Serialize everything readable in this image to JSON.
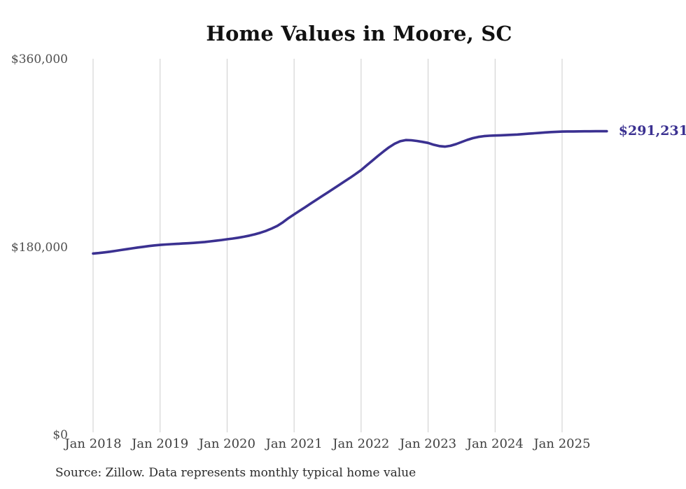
{
  "chart_data": {
    "type": "line",
    "title": "Home Values in Moore, SC",
    "xlabel": "",
    "ylabel": "",
    "ylim": [
      0,
      360000
    ],
    "grid": "vertical-lines-at-each-january",
    "legend": "none",
    "end_label": "$291,231",
    "latest_value": 291231,
    "line_color": "#3b3191",
    "grid_color": "#cccccc",
    "y_ticks": [
      {
        "label": "$0",
        "value": 0
      },
      {
        "label": "$180,000",
        "value": 180000
      },
      {
        "label": "$360,000",
        "value": 360000
      }
    ],
    "x_ticks": [
      {
        "label": "Jan 2018",
        "month": "2018-01"
      },
      {
        "label": "Jan 2019",
        "month": "2019-01"
      },
      {
        "label": "Jan 2020",
        "month": "2020-01"
      },
      {
        "label": "Jan 2021",
        "month": "2021-01"
      },
      {
        "label": "Jan 2022",
        "month": "2022-01"
      },
      {
        "label": "Jan 2023",
        "month": "2023-01"
      },
      {
        "label": "Jan 2024",
        "month": "2024-01"
      },
      {
        "label": "Jan 2025",
        "month": "2025-01"
      }
    ],
    "series": [
      {
        "name": "Monthly typical home value",
        "frequency": "monthly",
        "x": [
          "2018-01",
          "2018-02",
          "2018-03",
          "2018-04",
          "2018-05",
          "2018-06",
          "2018-07",
          "2018-08",
          "2018-09",
          "2018-10",
          "2018-11",
          "2018-12",
          "2019-01",
          "2019-02",
          "2019-03",
          "2019-04",
          "2019-05",
          "2019-06",
          "2019-07",
          "2019-08",
          "2019-09",
          "2019-10",
          "2019-11",
          "2019-12",
          "2020-01",
          "2020-02",
          "2020-03",
          "2020-04",
          "2020-05",
          "2020-06",
          "2020-07",
          "2020-08",
          "2020-09",
          "2020-10",
          "2020-11",
          "2020-12",
          "2021-01",
          "2021-02",
          "2021-03",
          "2021-04",
          "2021-05",
          "2021-06",
          "2021-07",
          "2021-08",
          "2021-09",
          "2021-10",
          "2021-11",
          "2021-12",
          "2022-01",
          "2022-02",
          "2022-03",
          "2022-04",
          "2022-05",
          "2022-06",
          "2022-07",
          "2022-08",
          "2022-09",
          "2022-10",
          "2022-11",
          "2022-12",
          "2023-01",
          "2023-02",
          "2023-03",
          "2023-04",
          "2023-05",
          "2023-06",
          "2023-07",
          "2023-08",
          "2023-09",
          "2023-10",
          "2023-11",
          "2023-12",
          "2024-01",
          "2024-02",
          "2024-03",
          "2024-04",
          "2024-05",
          "2024-06",
          "2024-07",
          "2024-08",
          "2024-09",
          "2024-10",
          "2024-11",
          "2024-12",
          "2025-01",
          "2025-02",
          "2025-03",
          "2025-04",
          "2025-05",
          "2025-06",
          "2025-07",
          "2025-08",
          "2025-09"
        ],
        "values": [
          174000,
          174500,
          175100,
          175800,
          176600,
          177400,
          178200,
          179000,
          179800,
          180500,
          181200,
          181800,
          182300,
          182700,
          183000,
          183300,
          183600,
          183900,
          184200,
          184600,
          185100,
          185700,
          186300,
          187000,
          187700,
          188400,
          189200,
          190100,
          191200,
          192500,
          194000,
          195800,
          198000,
          200500,
          204000,
          208000,
          211500,
          215000,
          218500,
          222000,
          225500,
          229000,
          232500,
          236000,
          239500,
          243000,
          246500,
          250200,
          254000,
          258500,
          263000,
          267500,
          271800,
          275800,
          279200,
          281600,
          282800,
          282600,
          281900,
          281000,
          280000,
          278300,
          277000,
          276500,
          277300,
          278900,
          280900,
          282900,
          284600,
          285800,
          286500,
          286900,
          287100,
          287300,
          287500,
          287800,
          288100,
          288500,
          288900,
          289300,
          289700,
          290100,
          290400,
          290700,
          290900,
          291000,
          291050,
          291100,
          291150,
          291180,
          291200,
          291225,
          291231
        ]
      }
    ]
  },
  "footer": {
    "source_note": "Source: Zillow. Data represents monthly typical home value"
  }
}
